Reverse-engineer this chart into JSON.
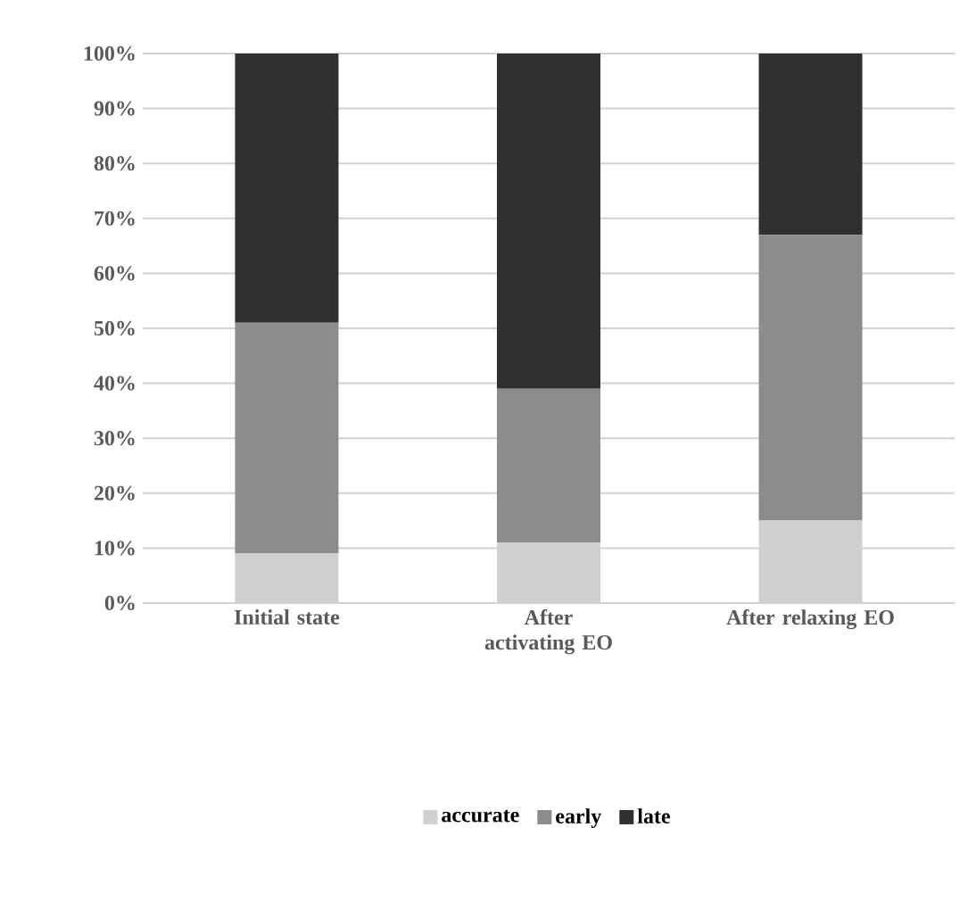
{
  "chart_data": {
    "type": "bar",
    "stacked": true,
    "categories": [
      "Initial state",
      "After activating EO",
      "After relaxing EO"
    ],
    "series": [
      {
        "name": "accurate",
        "color": "#d0d0d0",
        "values": [
          9,
          11,
          15
        ]
      },
      {
        "name": "early",
        "color": "#8c8c8c",
        "values": [
          42,
          28,
          52
        ]
      },
      {
        "name": "late",
        "color": "#303030",
        "values": [
          49,
          61,
          33
        ]
      }
    ],
    "ylim": [
      0,
      100
    ],
    "yticks": [
      {
        "value": 0,
        "label": "0%"
      },
      {
        "value": 10,
        "label": "10%"
      },
      {
        "value": 20,
        "label": "20%"
      },
      {
        "value": 30,
        "label": "30%"
      },
      {
        "value": 40,
        "label": "40%"
      },
      {
        "value": 50,
        "label": "50%"
      },
      {
        "value": 60,
        "label": "60%"
      },
      {
        "value": 70,
        "label": "70%"
      },
      {
        "value": 80,
        "label": "80%"
      },
      {
        "value": 90,
        "label": "90%"
      },
      {
        "value": 100,
        "label": "100%"
      }
    ],
    "grid": "y",
    "legend": "bottom"
  }
}
